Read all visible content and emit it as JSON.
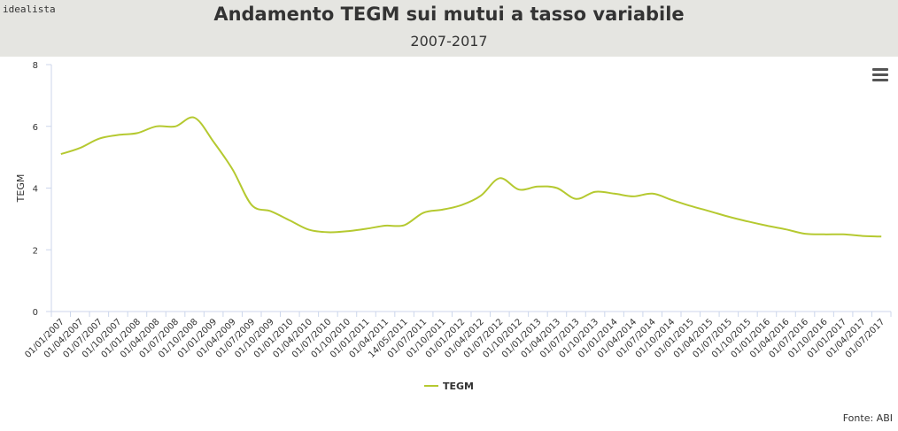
{
  "brand": "idealista",
  "source": "Fonte: ABI",
  "colors": {
    "header_bg": "#e5e5e1",
    "series": "#b5c930"
  },
  "menu_icon": "hamburger-menu-icon",
  "chart_data": {
    "type": "line",
    "title": "Andamento TEGM sui mutui a tasso variabile",
    "subtitle": "2007-2017",
    "xlabel": "",
    "ylabel": "TEGM",
    "ylim": [
      0,
      8
    ],
    "yticks": [
      0,
      2,
      4,
      6,
      8
    ],
    "grid": false,
    "legend_position": "bottom-center",
    "categories": [
      "01/01/2007",
      "01/04/2007",
      "01/07/2007",
      "01/10/2007",
      "01/01/2008",
      "01/04/2008",
      "01/07/2008",
      "01/10/2008",
      "01/01/2009",
      "01/04/2009",
      "01/07/2009",
      "01/10/2009",
      "01/01/2010",
      "01/04/2010",
      "01/07/2010",
      "01/10/2010",
      "01/01/2011",
      "01/04/2011",
      "14/05/2011",
      "01/07/2011",
      "01/10/2011",
      "01/01/2012",
      "01/04/2012",
      "01/07/2012",
      "01/10/2012",
      "01/01/2013",
      "01/04/2013",
      "01/07/2013",
      "01/10/2013",
      "01/01/2014",
      "01/04/2014",
      "01/07/2014",
      "01/10/2014",
      "01/01/2015",
      "01/04/2015",
      "01/07/2015",
      "01/10/2015",
      "01/01/2016",
      "01/04/2016",
      "01/07/2016",
      "01/10/2016",
      "01/01/2017",
      "01/04/2017",
      "01/07/2017"
    ],
    "series": [
      {
        "name": "TEGM",
        "color": "#b5c930",
        "values": [
          5.1,
          5.3,
          5.6,
          5.72,
          5.78,
          6.0,
          6.0,
          6.28,
          5.5,
          4.6,
          3.45,
          3.25,
          2.95,
          2.65,
          2.57,
          2.6,
          2.68,
          2.78,
          2.8,
          3.2,
          3.3,
          3.45,
          3.75,
          4.32,
          3.95,
          4.05,
          4.0,
          3.65,
          3.88,
          3.82,
          3.73,
          3.82,
          3.62,
          3.42,
          3.25,
          3.07,
          2.92,
          2.78,
          2.66,
          2.52,
          2.5,
          2.5,
          2.45,
          2.43
        ]
      }
    ]
  }
}
